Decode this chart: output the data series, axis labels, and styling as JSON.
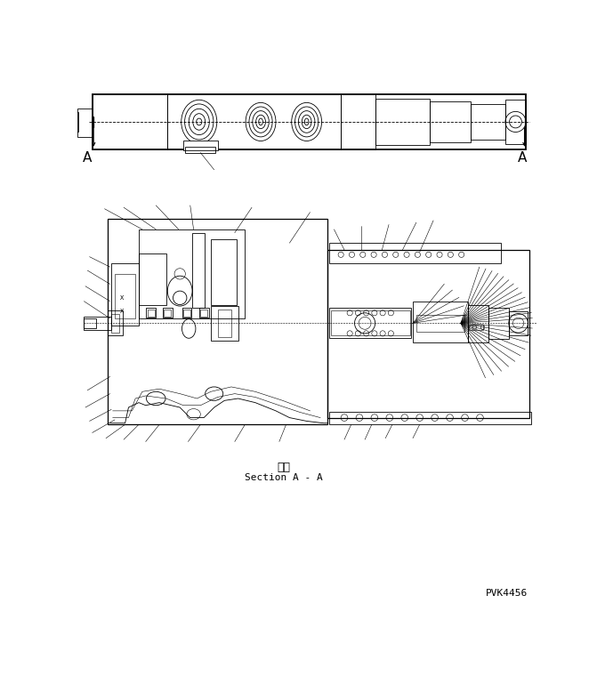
{
  "bg_color": "#ffffff",
  "line_color": "#000000",
  "text_color": "#000000",
  "section_label_jp": "断面",
  "section_label_en": "Section A - A",
  "part_number": "PVK4456",
  "section_label_jp_fontsize": 9,
  "section_label_en_fontsize": 8,
  "part_number_fontsize": 8,
  "label_A_fontsize": 11
}
